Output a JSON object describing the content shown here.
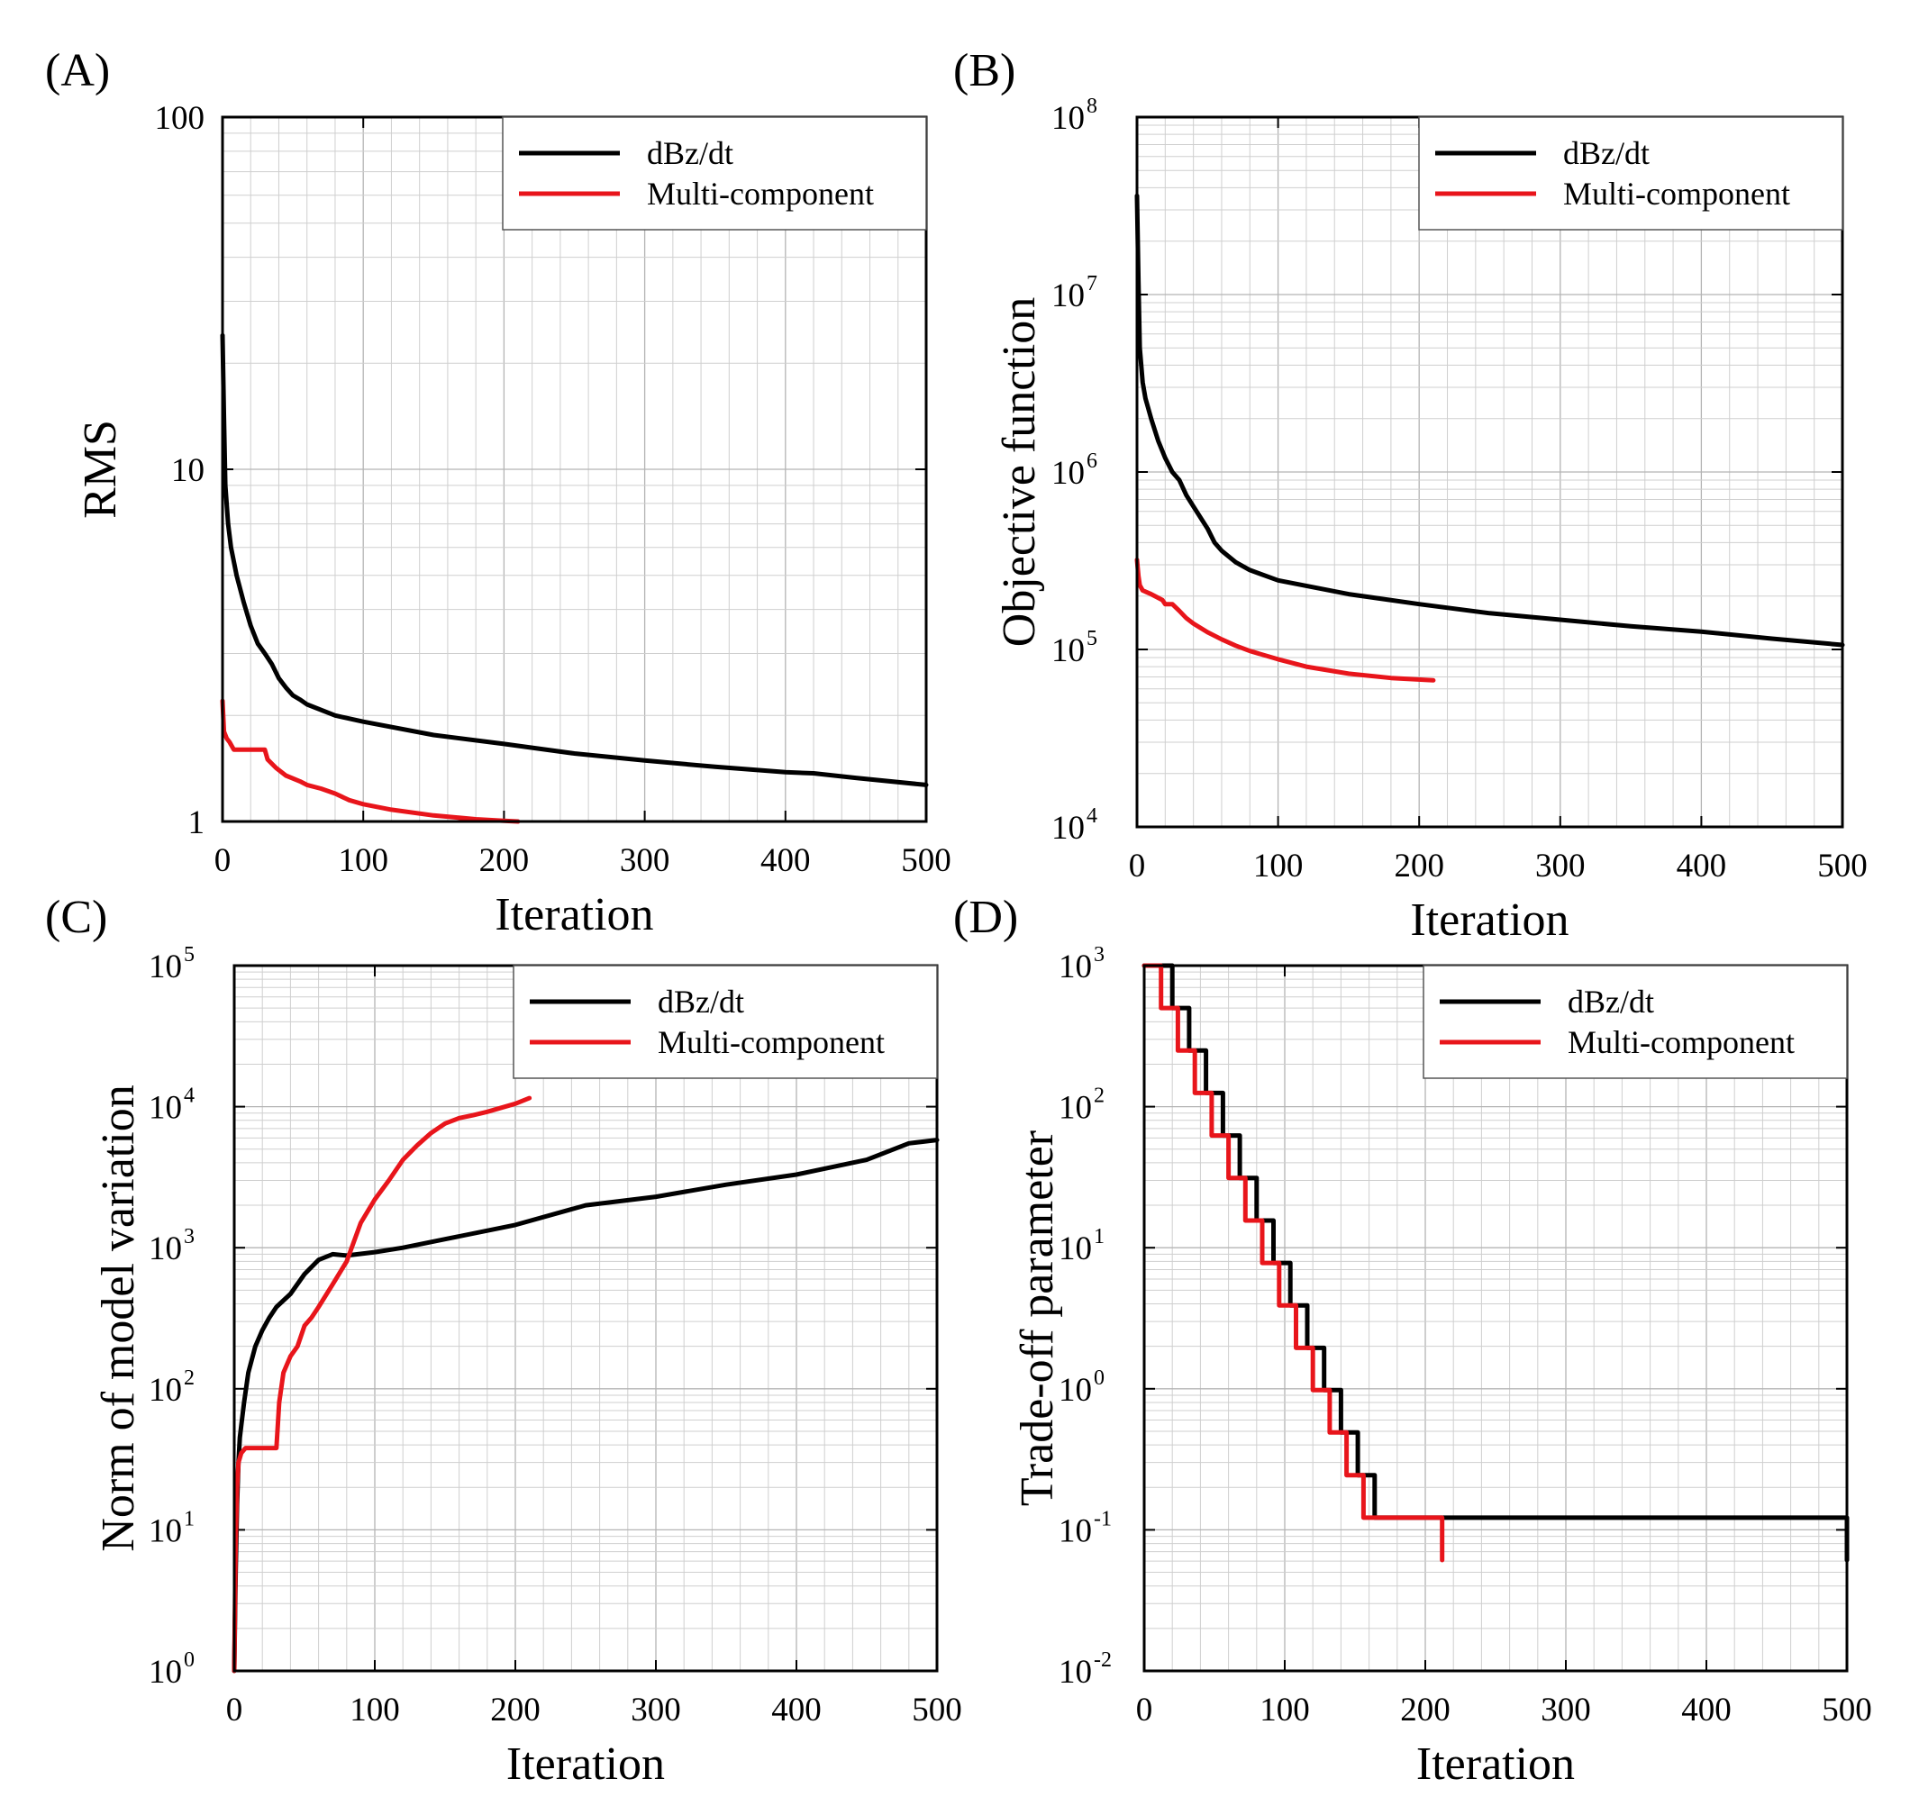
{
  "colors": {
    "black_series": "#000000",
    "red_series": "#e8151b"
  },
  "chart_data": [
    {
      "type": "line",
      "panel_label": "(A)",
      "xlabel": "Iteration",
      "ylabel": "RMS",
      "yscale": "log",
      "xlim": [
        0,
        500
      ],
      "ylim": [
        1,
        100
      ],
      "x_ticks": [
        0,
        100,
        200,
        300,
        400,
        500
      ],
      "y_ticks": [
        {
          "value": 1,
          "base": "1",
          "exp": ""
        },
        {
          "value": 10,
          "base": "10",
          "exp": ""
        },
        {
          "value": 100,
          "base": "100",
          "exp": ""
        }
      ],
      "grid": true,
      "legend": [
        "dBz/dt",
        "Multi-component"
      ],
      "legend_position": "top-right",
      "series": [
        {
          "name": "dBz/dt",
          "color": "#000000",
          "x": [
            0,
            1,
            2,
            4,
            6,
            10,
            15,
            20,
            25,
            30,
            35,
            40,
            45,
            50,
            55,
            60,
            80,
            100,
            150,
            200,
            250,
            300,
            350,
            400,
            420,
            450,
            500
          ],
          "y": [
            24,
            14,
            9,
            7,
            6,
            5,
            4.2,
            3.6,
            3.2,
            3.0,
            2.8,
            2.55,
            2.4,
            2.28,
            2.22,
            2.15,
            2.0,
            1.92,
            1.76,
            1.66,
            1.56,
            1.49,
            1.43,
            1.38,
            1.37,
            1.33,
            1.27
          ]
        },
        {
          "name": "Multi-component",
          "color": "#e8151b",
          "x": [
            0,
            1,
            3,
            5,
            8,
            30,
            32,
            38,
            45,
            55,
            60,
            70,
            80,
            90,
            100,
            120,
            150,
            180,
            200,
            210
          ],
          "y": [
            2.2,
            1.8,
            1.72,
            1.68,
            1.6,
            1.6,
            1.5,
            1.42,
            1.35,
            1.3,
            1.27,
            1.24,
            1.2,
            1.15,
            1.12,
            1.08,
            1.04,
            1.015,
            1.005,
            1.0
          ]
        }
      ]
    },
    {
      "type": "line",
      "panel_label": "(B)",
      "xlabel": "Iteration",
      "ylabel": "Objective function",
      "yscale": "log",
      "xlim": [
        0,
        500
      ],
      "ylim": [
        10000,
        100000000
      ],
      "x_ticks": [
        0,
        100,
        200,
        300,
        400,
        500
      ],
      "y_ticks": [
        {
          "value": 10000,
          "base": "10",
          "exp": "4"
        },
        {
          "value": 100000,
          "base": "10",
          "exp": "5"
        },
        {
          "value": 1000000,
          "base": "10",
          "exp": "6"
        },
        {
          "value": 10000000,
          "base": "10",
          "exp": "7"
        },
        {
          "value": 100000000,
          "base": "10",
          "exp": "8"
        }
      ],
      "grid": true,
      "legend": [
        "dBz/dt",
        "Multi-component"
      ],
      "legend_position": "top-right",
      "series": [
        {
          "name": "dBz/dt",
          "color": "#000000",
          "x": [
            0,
            1,
            2,
            4,
            6,
            10,
            15,
            20,
            25,
            30,
            35,
            40,
            50,
            55,
            60,
            70,
            80,
            100,
            150,
            200,
            250,
            300,
            350,
            400,
            450,
            500
          ],
          "y": [
            36000000,
            12000000,
            5000000,
            3200000,
            2600000,
            2000000,
            1500000,
            1200000,
            1000000,
            900000,
            740000,
            640000,
            480000,
            400000,
            360000,
            310000,
            280000,
            245000,
            205000,
            180000,
            160000,
            147000,
            135000,
            126000,
            115000,
            106000
          ]
        },
        {
          "name": "Multi-component",
          "color": "#e8151b",
          "x": [
            0,
            1,
            2,
            4,
            10,
            18,
            20,
            25,
            30,
            35,
            40,
            50,
            60,
            70,
            80,
            100,
            120,
            150,
            180,
            210
          ],
          "y": [
            320000,
            260000,
            230000,
            215000,
            205000,
            190000,
            180000,
            180000,
            165000,
            150000,
            140000,
            125000,
            114000,
            105000,
            98000,
            88000,
            80000,
            73000,
            69000,
            67000
          ]
        }
      ]
    },
    {
      "type": "line",
      "panel_label": "(C)",
      "xlabel": "Iteration",
      "ylabel": "Norm of model variation",
      "yscale": "log",
      "xlim": [
        0,
        500
      ],
      "ylim": [
        1,
        100000
      ],
      "x_ticks": [
        0,
        100,
        200,
        300,
        400,
        500
      ],
      "y_ticks": [
        {
          "value": 1,
          "base": "10",
          "exp": "0"
        },
        {
          "value": 10,
          "base": "10",
          "exp": "1"
        },
        {
          "value": 100,
          "base": "10",
          "exp": "2"
        },
        {
          "value": 1000,
          "base": "10",
          "exp": "3"
        },
        {
          "value": 10000,
          "base": "10",
          "exp": "4"
        },
        {
          "value": 100000,
          "base": "10",
          "exp": "5"
        }
      ],
      "grid": true,
      "legend": [
        "dBz/dt",
        "Multi-component"
      ],
      "legend_position": "top-right",
      "series": [
        {
          "name": "dBz/dt",
          "color": "#000000",
          "x": [
            0,
            1,
            2,
            3,
            4,
            5,
            7,
            10,
            15,
            20,
            25,
            30,
            40,
            50,
            60,
            70,
            80,
            100,
            120,
            150,
            200,
            250,
            300,
            350,
            400,
            450,
            480,
            500
          ],
          "y": [
            1,
            5,
            15,
            30,
            45,
            55,
            80,
            130,
            200,
            260,
            320,
            380,
            470,
            650,
            820,
            900,
            880,
            930,
            1000,
            1150,
            1450,
            2000,
            2300,
            2800,
            3300,
            4200,
            5500,
            5800
          ]
        },
        {
          "name": "Multi-component",
          "color": "#e8151b",
          "x": [
            0,
            1,
            2,
            3,
            5,
            8,
            10,
            30,
            32,
            35,
            40,
            45,
            50,
            55,
            60,
            70,
            80,
            90,
            100,
            110,
            120,
            130,
            140,
            150,
            160,
            170,
            180,
            200,
            210
          ],
          "y": [
            1,
            8,
            20,
            30,
            35,
            38,
            38,
            38,
            80,
            130,
            170,
            200,
            280,
            320,
            380,
            550,
            800,
            1500,
            2200,
            3000,
            4200,
            5300,
            6500,
            7600,
            8300,
            8700,
            9200,
            10500,
            11500
          ]
        }
      ]
    },
    {
      "type": "line",
      "panel_label": "(D)",
      "xlabel": "Iteration",
      "ylabel": "Trade-off parameter",
      "yscale": "log",
      "xlim": [
        0,
        500
      ],
      "ylim": [
        0.01,
        1000
      ],
      "x_ticks": [
        0,
        100,
        200,
        300,
        400,
        500
      ],
      "y_ticks": [
        {
          "value": 0.01,
          "base": "10",
          "exp": "-2"
        },
        {
          "value": 0.1,
          "base": "10",
          "exp": "-1"
        },
        {
          "value": 1,
          "base": "10",
          "exp": "0"
        },
        {
          "value": 10,
          "base": "10",
          "exp": "1"
        },
        {
          "value": 100,
          "base": "10",
          "exp": "2"
        },
        {
          "value": 1000,
          "base": "10",
          "exp": "3"
        }
      ],
      "grid": true,
      "legend": [
        "dBz/dt",
        "Multi-component"
      ],
      "legend_position": "top-right",
      "series": [
        {
          "name": "dBz/dt",
          "color": "#000000",
          "step": true,
          "x": [
            0,
            20,
            32,
            44,
            56,
            68,
            80,
            92,
            104,
            116,
            128,
            140,
            152,
            164,
            500
          ],
          "y": [
            1000,
            500,
            250,
            125,
            62.5,
            31.25,
            15.6,
            7.8,
            3.9,
            1.95,
            0.98,
            0.49,
            0.244,
            0.122,
            0.061
          ]
        },
        {
          "name": "Multi-component",
          "color": "#e8151b",
          "step": true,
          "x": [
            0,
            12,
            24,
            36,
            48,
            60,
            72,
            84,
            96,
            108,
            120,
            132,
            144,
            156,
            212
          ],
          "y": [
            1000,
            500,
            250,
            125,
            62.5,
            31.25,
            15.6,
            7.8,
            3.9,
            1.95,
            0.98,
            0.49,
            0.244,
            0.122,
            0.061
          ]
        }
      ]
    }
  ]
}
